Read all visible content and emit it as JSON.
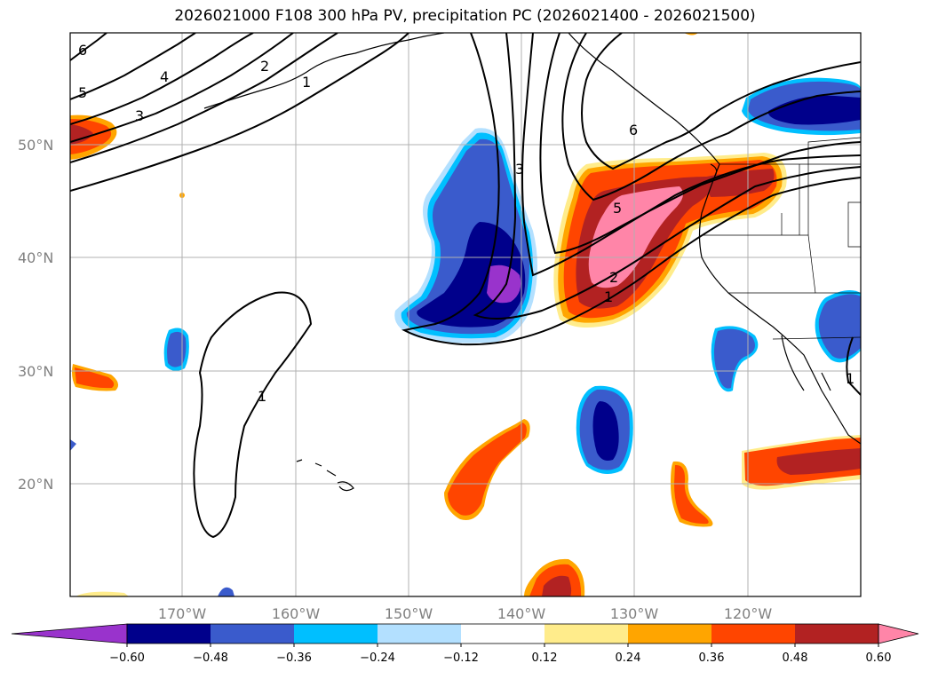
{
  "title": "2026021000 F108 300 hPa PV, precipitation PC (2026021400 - 2026021500)",
  "lat_ticks": [
    "50°N",
    "40°N",
    "30°N",
    "20°N"
  ],
  "lon_ticks": [
    "170°W",
    "160°W",
    "150°W",
    "140°W",
    "130°W",
    "120°W"
  ],
  "colorbar": {
    "labels": [
      "−0.60",
      "−0.48",
      "−0.36",
      "−0.24",
      "−0.12",
      "0.12",
      "0.24",
      "0.36",
      "0.48",
      "0.60"
    ],
    "colors": [
      "#9933cc",
      "#00008b",
      "#3a5bcc",
      "#00bfff",
      "#b3e0ff",
      "#ffffff",
      "#ffec8b",
      "#ffa500",
      "#ff4500",
      "#b22222",
      "#ff85a8"
    ]
  },
  "contour_labels": [
    "6",
    "5",
    "4",
    "3",
    "2",
    "1",
    "3",
    "6",
    "5",
    "2",
    "1",
    "1",
    "1"
  ],
  "colors": {
    "land": "#ffffff",
    "grid": "#b0b0b0",
    "coast": "#000000"
  }
}
